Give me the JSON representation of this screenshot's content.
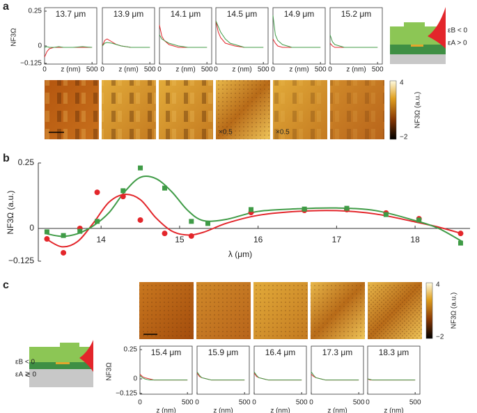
{
  "panels": [
    "a",
    "b",
    "c"
  ],
  "colorbars": [
    {
      "max": "4",
      "min": "−2",
      "label": "NF3Ω (a.u.)"
    },
    {
      "max": "4",
      "min": "−2",
      "label": "NF3Ω (a.u.)"
    }
  ],
  "annotations": [
    "×0.5",
    "×0.5"
  ],
  "schematic": {
    "top": [
      "εB < 0",
      "εA > 0"
    ],
    "bottom": [
      "εB < 0",
      "εA ≷ 0"
    ]
  },
  "chart_data": [
    {
      "type": "line",
      "title": "13.7 μm",
      "x": [
        0,
        25,
        50,
        100,
        150,
        200,
        300,
        400,
        500
      ],
      "xlim": [
        0,
        550
      ],
      "xticks": [
        0,
        500
      ],
      "xlabel": "z (nm)",
      "ylabel": "NF3Ω",
      "ylim": [
        -0.125,
        0.25
      ],
      "yticks": [
        0.25,
        0,
        {
          "value": -0.125,
          "label": "−0.125"
        }
      ],
      "series": [
        {
          "color": "#e3262b",
          "values": [
            -0.08,
            -0.04,
            -0.02,
            -0.01,
            -0.01,
            -0.01,
            -0.01,
            -0.01,
            -0.01
          ]
        },
        {
          "color": "#3f9b46",
          "values": [
            -0.01,
            -0.005,
            -0.01,
            -0.01,
            -0.005,
            -0.01,
            -0.01,
            -0.005,
            -0.01
          ]
        }
      ]
    },
    {
      "type": "line",
      "title": "13.9 μm",
      "x": [
        0,
        25,
        50,
        100,
        150,
        200,
        300,
        400,
        500
      ],
      "xlim": [
        0,
        550
      ],
      "xticks": [
        0,
        500
      ],
      "xlabel": "z (nm)",
      "ylim": [
        -0.125,
        0.25
      ],
      "series": [
        {
          "color": "#e3262b",
          "values": [
            0,
            0.04,
            0.05,
            0.03,
            0.01,
            0,
            -0.01,
            -0.01,
            -0.01
          ]
        },
        {
          "color": "#3f9b46",
          "values": [
            0,
            0.02,
            0.025,
            0.02,
            0.01,
            0,
            -0.01,
            -0.01,
            -0.01
          ]
        }
      ]
    },
    {
      "type": "line",
      "title": "14.1 μm",
      "x": [
        0,
        25,
        50,
        100,
        150,
        200,
        300,
        400,
        500
      ],
      "xlim": [
        0,
        550
      ],
      "xticks": [
        0,
        500
      ],
      "xlabel": "z (nm)",
      "ylim": [
        -0.125,
        0.25
      ],
      "series": [
        {
          "color": "#e3262b",
          "values": [
            0.15,
            0.07,
            0.04,
            0.01,
            0,
            -0.01,
            -0.01,
            -0.01,
            -0.01
          ]
        },
        {
          "color": "#3f9b46",
          "values": [
            0.08,
            0.05,
            0.04,
            0.02,
            0.01,
            0,
            -0.01,
            -0.01,
            -0.01
          ]
        }
      ]
    },
    {
      "type": "line",
      "title": "14.5 μm",
      "x": [
        0,
        25,
        50,
        100,
        150,
        200,
        300,
        400,
        500
      ],
      "xlim": [
        0,
        550
      ],
      "xticks": [
        0,
        500
      ],
      "xlabel": "z (nm)",
      "ylim": [
        -0.125,
        0.25
      ],
      "series": [
        {
          "color": "#e3262b",
          "values": [
            0.18,
            0.1,
            0.06,
            0.02,
            0.01,
            0,
            -0.01,
            -0.01,
            -0.01
          ]
        },
        {
          "color": "#3f9b46",
          "values": [
            0.18,
            0.14,
            0.1,
            0.05,
            0.02,
            0.01,
            -0.01,
            -0.01,
            -0.01
          ]
        }
      ]
    },
    {
      "type": "line",
      "title": "14.9 μm",
      "x": [
        0,
        25,
        50,
        100,
        150,
        200,
        300,
        400,
        500
      ],
      "xlim": [
        0,
        550
      ],
      "xticks": [
        0,
        500
      ],
      "xlabel": "z (nm)",
      "ylim": [
        -0.125,
        0.25
      ],
      "series": [
        {
          "color": "#e3262b",
          "values": [
            0.05,
            0.02,
            0,
            -0.01,
            -0.01,
            -0.01,
            -0.01,
            -0.01,
            -0.01
          ]
        },
        {
          "color": "#3f9b46",
          "values": [
            0.22,
            0.08,
            0.04,
            0.01,
            0,
            -0.01,
            -0.01,
            -0.01,
            -0.01
          ]
        }
      ]
    },
    {
      "type": "line",
      "title": "15.2 μm",
      "x": [
        0,
        25,
        50,
        100,
        150,
        200,
        300,
        400,
        500
      ],
      "xlim": [
        0,
        550
      ],
      "xticks": [
        0,
        500
      ],
      "xlabel": "z (nm)",
      "ylim": [
        -0.125,
        0.25
      ],
      "series": [
        {
          "color": "#e3262b",
          "values": [
            0.02,
            0,
            -0.01,
            -0.01,
            -0.01,
            -0.01,
            -0.01,
            -0.01,
            -0.01
          ]
        },
        {
          "color": "#3f9b46",
          "values": [
            0.08,
            0.03,
            0.01,
            0,
            -0.01,
            -0.01,
            -0.01,
            -0.01,
            -0.01
          ]
        }
      ]
    },
    {
      "type": "line",
      "title": "15.4 μm",
      "x": [
        0,
        25,
        50,
        100,
        150,
        200,
        300,
        400,
        500
      ],
      "xlim": [
        0,
        550
      ],
      "xticks": [
        0,
        500
      ],
      "xlabel": "z (nm)",
      "ylabel": "NF3Ω",
      "ylim": [
        -0.125,
        0.25
      ],
      "yticks": [
        0.25,
        0,
        {
          "value": -0.125,
          "label": "−0.125"
        }
      ],
      "series": [
        {
          "color": "#e3262b",
          "values": [
            0.04,
            0.02,
            0.01,
            0,
            -0.01,
            -0.01,
            -0.01,
            -0.01,
            -0.01
          ]
        },
        {
          "color": "#3f9b46",
          "values": [
            0.03,
            0.01,
            0,
            -0.01,
            -0.01,
            -0.01,
            -0.01,
            -0.01,
            -0.01
          ]
        }
      ]
    },
    {
      "type": "line",
      "title": "15.9 μm",
      "x": [
        0,
        25,
        50,
        100,
        150,
        200,
        300,
        400,
        500
      ],
      "xlim": [
        0,
        550
      ],
      "xticks": [
        0,
        500
      ],
      "xlabel": "z (nm)",
      "ylim": [
        -0.125,
        0.25
      ],
      "series": [
        {
          "color": "#e3262b",
          "values": [
            0.05,
            0.02,
            0.01,
            0,
            -0.01,
            -0.01,
            -0.01,
            -0.01,
            -0.01
          ]
        },
        {
          "color": "#3f9b46",
          "values": [
            0.06,
            0.03,
            0.01,
            0,
            -0.01,
            -0.01,
            -0.01,
            -0.01,
            -0.01
          ]
        }
      ]
    },
    {
      "type": "line",
      "title": "16.4 μm",
      "x": [
        0,
        25,
        50,
        100,
        150,
        200,
        300,
        400,
        500
      ],
      "xlim": [
        0,
        550
      ],
      "xticks": [
        0,
        500
      ],
      "xlabel": "z (nm)",
      "ylim": [
        -0.125,
        0.25
      ],
      "series": [
        {
          "color": "#e3262b",
          "values": [
            0.05,
            0.02,
            0.01,
            0,
            -0.01,
            -0.01,
            -0.01,
            -0.01,
            -0.01
          ]
        },
        {
          "color": "#3f9b46",
          "values": [
            0.06,
            0.03,
            0.01,
            0,
            -0.01,
            -0.01,
            -0.01,
            -0.01,
            -0.01
          ]
        }
      ]
    },
    {
      "type": "line",
      "title": "17.3 μm",
      "x": [
        0,
        25,
        50,
        100,
        150,
        200,
        300,
        400,
        500
      ],
      "xlim": [
        0,
        550
      ],
      "xticks": [
        0,
        500
      ],
      "xlabel": "z (nm)",
      "ylim": [
        -0.125,
        0.25
      ],
      "series": [
        {
          "color": "#e3262b",
          "values": [
            0.04,
            0.02,
            0.01,
            0,
            -0.01,
            -0.01,
            -0.01,
            -0.01,
            -0.01
          ]
        },
        {
          "color": "#3f9b46",
          "values": [
            0.06,
            0.03,
            0.01,
            0,
            -0.01,
            -0.01,
            -0.01,
            -0.01,
            -0.01
          ]
        }
      ]
    },
    {
      "type": "line",
      "title": "18.3 μm",
      "x": [
        0,
        25,
        50,
        100,
        150,
        200,
        300,
        400,
        500
      ],
      "xlim": [
        0,
        550
      ],
      "xticks": [
        0,
        500
      ],
      "xlabel": "z (nm)",
      "ylim": [
        -0.125,
        0.25
      ],
      "series": [
        {
          "color": "#e3262b",
          "values": [
            0,
            -0.01,
            -0.01,
            -0.01,
            -0.01,
            -0.01,
            -0.01,
            -0.01,
            -0.01
          ]
        },
        {
          "color": "#3f9b46",
          "values": [
            0,
            -0.005,
            -0.01,
            -0.01,
            -0.01,
            -0.01,
            -0.01,
            -0.01,
            -0.01
          ]
        }
      ]
    },
    {
      "type": "scatter",
      "xlabel": "λ (μm)",
      "ylabel": "NF3Ω (a.u.)",
      "xlim": [
        13.2,
        18.7
      ],
      "xticks": [
        14,
        15,
        16,
        17,
        18
      ],
      "ylim": [
        -0.125,
        0.25
      ],
      "yticks": [
        0.25,
        0,
        {
          "value": -0.125,
          "label": "−0.125"
        }
      ],
      "series": [
        {
          "color": "#e3262b",
          "marker": "circle",
          "x": [
            13.31,
            13.52,
            13.73,
            13.95,
            14.28,
            14.5,
            14.81,
            15.15,
            15.91,
            16.59,
            17.13,
            17.63,
            18.05,
            18.58
          ],
          "values": [
            -0.04,
            -0.093,
            0,
            0.138,
            0.122,
            0.032,
            -0.019,
            -0.029,
            0.061,
            0.069,
            0.072,
            0.059,
            0.037,
            -0.019
          ]
        },
        {
          "color": "#3f9b46",
          "marker": "square",
          "x": [
            13.31,
            13.52,
            13.73,
            13.95,
            14.28,
            14.5,
            14.81,
            15.15,
            15.36,
            15.91,
            16.59,
            17.13,
            17.63,
            18.05,
            18.58
          ],
          "values": [
            -0.013,
            -0.027,
            -0.011,
            0.027,
            0.144,
            0.231,
            0.154,
            0.027,
            0.019,
            0.072,
            0.074,
            0.077,
            0.053,
            0.032,
            -0.056
          ]
        },
        {
          "color": "#e3262b",
          "style": "smooth-line",
          "x": [
            13.3,
            13.5,
            13.7,
            13.9,
            14.1,
            14.3,
            14.5,
            14.7,
            14.9,
            15.1,
            15.3,
            15.6,
            16,
            16.5,
            17,
            17.5,
            18,
            18.3,
            18.6
          ],
          "values": [
            -0.04,
            -0.07,
            -0.05,
            0.02,
            0.1,
            0.13,
            0.11,
            0.04,
            -0.01,
            -0.025,
            -0.015,
            0.02,
            0.05,
            0.065,
            0.068,
            0.055,
            0.025,
            0.005,
            -0.02
          ]
        },
        {
          "color": "#3f9b46",
          "style": "smooth-line",
          "x": [
            13.3,
            13.5,
            13.7,
            13.9,
            14.1,
            14.3,
            14.5,
            14.7,
            14.9,
            15.1,
            15.3,
            15.6,
            16,
            16.5,
            17,
            17.5,
            18,
            18.3,
            18.6
          ],
          "values": [
            -0.02,
            -0.03,
            -0.02,
            0.01,
            0.06,
            0.14,
            0.195,
            0.19,
            0.14,
            0.07,
            0.03,
            0.035,
            0.065,
            0.075,
            0.078,
            0.068,
            0.03,
            0,
            -0.05
          ]
        }
      ]
    }
  ]
}
